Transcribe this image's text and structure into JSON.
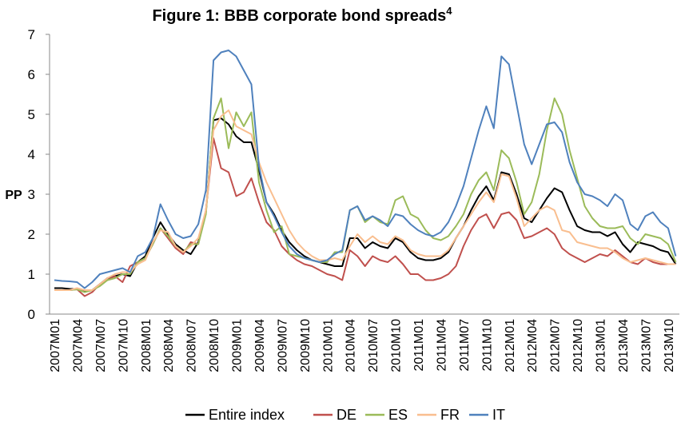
{
  "chart_data": {
    "type": "line",
    "title": "Figure 1: BBB corporate bond spreads",
    "title_superscript": "4",
    "y_label": "PP",
    "categories": [
      "2007M01",
      null,
      null,
      "2007M04",
      null,
      null,
      "2007M07",
      null,
      null,
      "2007M10",
      null,
      null,
      "2008M01",
      null,
      null,
      "2008M04",
      null,
      null,
      "2008M07",
      null,
      null,
      "2008M10",
      null,
      null,
      "2009M01",
      null,
      null,
      "2009M04",
      null,
      null,
      "2009M07",
      null,
      null,
      "2009M10",
      null,
      null,
      "2010M01",
      null,
      null,
      "2010M04",
      null,
      null,
      "2010M07",
      null,
      null,
      "2010M10",
      null,
      null,
      "2011M01",
      null,
      null,
      "2011M04",
      null,
      null,
      "2011M07",
      null,
      null,
      "2011M10",
      null,
      null,
      "2012M01",
      null,
      null,
      "2012M04",
      null,
      null,
      "2012M07",
      null,
      null,
      "2012M10",
      null,
      null,
      "2013M01",
      null,
      null,
      "2013M04",
      null,
      null,
      "2013M07",
      null,
      null,
      "2013M10",
      null
    ],
    "series": [
      {
        "name": "Entire index",
        "color": "#000000",
        "values": [
          0.65,
          0.65,
          0.63,
          0.63,
          0.58,
          0.6,
          0.75,
          0.9,
          0.95,
          1.0,
          0.95,
          1.3,
          1.45,
          1.9,
          2.3,
          2.0,
          1.75,
          1.6,
          1.5,
          1.8,
          2.55,
          4.85,
          4.9,
          4.75,
          4.45,
          4.3,
          4.3,
          3.6,
          2.8,
          2.5,
          2.1,
          1.8,
          1.6,
          1.45,
          1.35,
          1.3,
          1.25,
          1.2,
          1.2,
          1.9,
          1.9,
          1.65,
          1.8,
          1.7,
          1.65,
          1.9,
          1.8,
          1.55,
          1.4,
          1.35,
          1.35,
          1.4,
          1.55,
          1.9,
          2.2,
          2.6,
          2.95,
          3.2,
          2.85,
          3.55,
          3.5,
          3.0,
          2.4,
          2.3,
          2.6,
          2.9,
          3.15,
          3.05,
          2.6,
          2.2,
          2.1,
          2.05,
          2.05,
          1.95,
          2.05,
          1.75,
          1.55,
          1.8,
          1.75,
          1.7,
          1.6,
          1.55,
          1.25
        ]
      },
      {
        "name": "DE",
        "color": "#c0504d",
        "values": [
          0.6,
          0.6,
          0.6,
          0.62,
          0.45,
          0.55,
          0.75,
          0.85,
          0.95,
          0.8,
          1.2,
          1.3,
          1.4,
          1.75,
          2.15,
          1.9,
          1.65,
          1.5,
          1.8,
          1.75,
          2.6,
          4.4,
          3.65,
          3.55,
          2.95,
          3.05,
          3.4,
          2.8,
          2.3,
          2.1,
          1.7,
          1.5,
          1.35,
          1.25,
          1.2,
          1.1,
          1.0,
          0.95,
          0.85,
          1.6,
          1.45,
          1.2,
          1.45,
          1.35,
          1.3,
          1.45,
          1.25,
          1.0,
          1.0,
          0.85,
          0.85,
          0.9,
          1.0,
          1.2,
          1.7,
          2.1,
          2.4,
          2.5,
          2.15,
          2.5,
          2.55,
          2.35,
          1.9,
          1.95,
          2.05,
          2.15,
          2.0,
          1.65,
          1.5,
          1.4,
          1.3,
          1.4,
          1.5,
          1.45,
          1.6,
          1.45,
          1.3,
          1.25,
          1.4,
          1.3,
          1.25,
          1.25,
          1.25
        ]
      },
      {
        "name": "ES",
        "color": "#9bbb59",
        "values": [
          0.6,
          0.6,
          0.6,
          0.62,
          0.55,
          0.6,
          0.7,
          0.85,
          0.9,
          1.0,
          1.0,
          1.3,
          1.4,
          1.75,
          2.15,
          1.95,
          1.7,
          1.55,
          1.75,
          1.75,
          2.5,
          4.9,
          5.4,
          4.15,
          5.05,
          4.7,
          5.05,
          3.3,
          2.6,
          2.05,
          2.2,
          1.5,
          1.45,
          1.4,
          1.35,
          1.3,
          1.3,
          1.55,
          1.55,
          2.6,
          2.7,
          2.3,
          2.45,
          2.3,
          2.25,
          2.85,
          2.95,
          2.5,
          2.4,
          2.1,
          1.9,
          1.85,
          1.95,
          2.2,
          2.5,
          3.0,
          3.35,
          3.55,
          3.1,
          4.1,
          3.9,
          3.3,
          2.5,
          2.8,
          3.5,
          4.6,
          5.4,
          5.0,
          4.1,
          3.4,
          2.7,
          2.4,
          2.2,
          2.15,
          2.15,
          2.2,
          1.9,
          1.75,
          2.0,
          1.95,
          1.9,
          1.75,
          1.3
        ]
      },
      {
        "name": "FR",
        "color": "#f9be8f",
        "values": [
          0.6,
          0.6,
          0.6,
          0.65,
          0.6,
          0.6,
          0.75,
          0.9,
          1.0,
          1.05,
          1.05,
          1.25,
          1.35,
          1.8,
          2.1,
          2.05,
          1.7,
          1.55,
          1.7,
          1.9,
          2.6,
          4.6,
          4.95,
          5.1,
          4.7,
          4.6,
          4.5,
          3.8,
          3.3,
          2.9,
          2.5,
          2.1,
          1.8,
          1.6,
          1.45,
          1.35,
          1.35,
          1.4,
          1.35,
          1.7,
          2.0,
          1.8,
          1.95,
          1.8,
          1.75,
          1.95,
          1.85,
          1.6,
          1.5,
          1.45,
          1.45,
          1.45,
          1.6,
          1.9,
          2.2,
          2.5,
          2.8,
          3.05,
          2.8,
          3.5,
          3.45,
          2.9,
          2.2,
          2.4,
          2.6,
          2.7,
          2.6,
          2.1,
          2.05,
          1.8,
          1.75,
          1.7,
          1.65,
          1.65,
          1.55,
          1.4,
          1.3,
          1.35,
          1.4,
          1.35,
          1.3,
          1.25,
          1.25
        ]
      },
      {
        "name": "IT",
        "color": "#4f81bd",
        "values": [
          0.85,
          0.83,
          0.82,
          0.8,
          0.65,
          0.8,
          1.0,
          1.05,
          1.1,
          1.15,
          1.05,
          1.45,
          1.55,
          1.9,
          2.75,
          2.35,
          2.0,
          1.9,
          1.95,
          2.25,
          3.1,
          6.35,
          6.55,
          6.6,
          6.45,
          6.1,
          5.75,
          3.7,
          2.8,
          2.45,
          2.05,
          1.7,
          1.5,
          1.4,
          1.35,
          1.3,
          1.35,
          1.5,
          1.6,
          2.6,
          2.7,
          2.35,
          2.45,
          2.35,
          2.2,
          2.5,
          2.45,
          2.25,
          2.1,
          2.0,
          1.95,
          2.05,
          2.3,
          2.7,
          3.2,
          3.9,
          4.6,
          5.2,
          4.65,
          6.45,
          6.25,
          5.25,
          4.25,
          3.75,
          4.25,
          4.75,
          4.8,
          4.55,
          3.8,
          3.3,
          3.0,
          2.95,
          2.85,
          2.7,
          3.0,
          2.85,
          2.25,
          2.1,
          2.45,
          2.55,
          2.3,
          2.15,
          1.45
        ]
      }
    ],
    "ylim": [
      0,
      7
    ],
    "yticks": [
      0,
      1,
      2,
      3,
      4,
      5,
      6,
      7
    ],
    "grid": false,
    "legend": "bottom"
  }
}
